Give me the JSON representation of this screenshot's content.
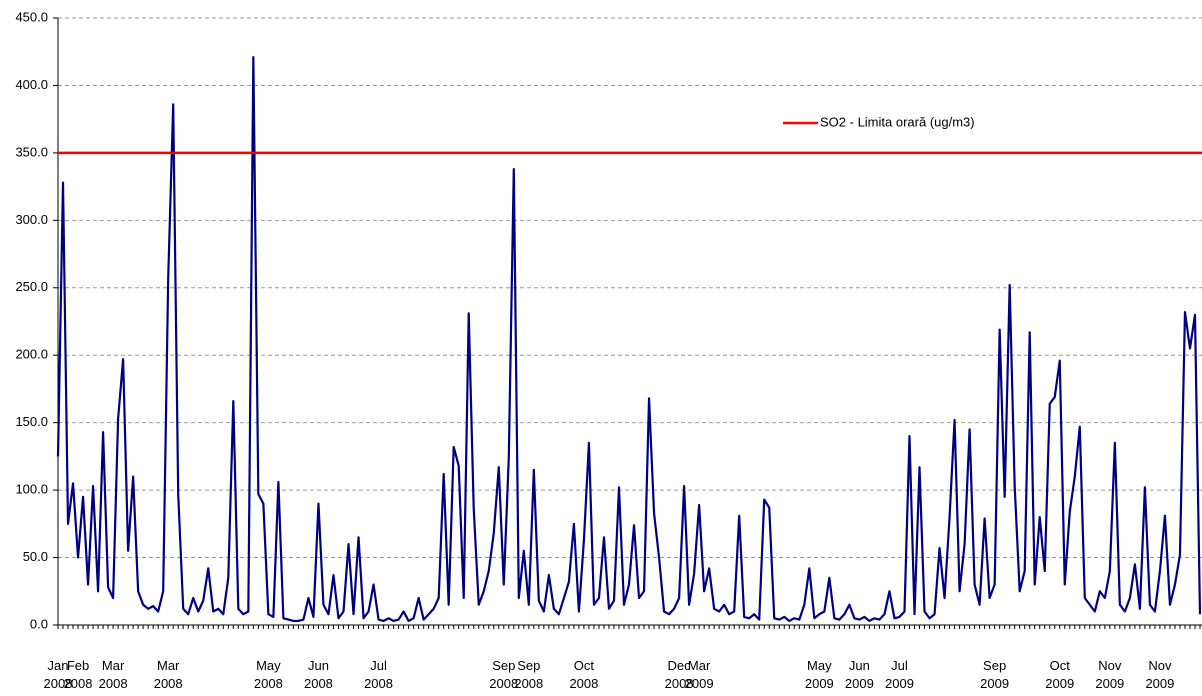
{
  "chart_data": {
    "type": "line",
    "categories": [
      "Jan 2008",
      null,
      null,
      null,
      "Feb 2008",
      null,
      null,
      null,
      null,
      null,
      null,
      "Mar 2008",
      null,
      null,
      null,
      null,
      null,
      null,
      null,
      null,
      null,
      null,
      "Mar 2008",
      null,
      null,
      null,
      null,
      null,
      null,
      null,
      null,
      null,
      null,
      null,
      null,
      null,
      null,
      null,
      null,
      null,
      null,
      null,
      "May 2008",
      null,
      null,
      null,
      null,
      null,
      null,
      null,
      null,
      null,
      "Jun 2008",
      null,
      null,
      null,
      null,
      null,
      null,
      null,
      null,
      null,
      null,
      null,
      "Jul 2008",
      null,
      null,
      null,
      null,
      null,
      null,
      null,
      null,
      null,
      null,
      null,
      null,
      null,
      null,
      null,
      null,
      null,
      null,
      null,
      null,
      null,
      null,
      null,
      null,
      "Sep 2008",
      null,
      null,
      null,
      null,
      "Sep 2008",
      null,
      null,
      null,
      null,
      null,
      null,
      null,
      null,
      null,
      null,
      "Oct 2008",
      null,
      null,
      null,
      null,
      null,
      null,
      null,
      null,
      null,
      null,
      null,
      null,
      null,
      null,
      null,
      null,
      null,
      null,
      "Dec 2008",
      null,
      null,
      null,
      "Mar 2009",
      null,
      null,
      null,
      null,
      null,
      null,
      null,
      null,
      null,
      null,
      null,
      null,
      null,
      null,
      null,
      null,
      null,
      null,
      null,
      null,
      null,
      null,
      null,
      "May 2009",
      null,
      null,
      null,
      null,
      null,
      null,
      null,
      "Jun 2009",
      null,
      null,
      null,
      null,
      null,
      null,
      null,
      "Jul 2009",
      null,
      null,
      null,
      null,
      null,
      null,
      null,
      null,
      null,
      null,
      null,
      null,
      null,
      null,
      null,
      null,
      null,
      null,
      "Sep 2009",
      null,
      null,
      null,
      null,
      null,
      null,
      null,
      null,
      null,
      null,
      null,
      null,
      "Oct 2009",
      null,
      null,
      null,
      null,
      null,
      null,
      null,
      null,
      null,
      "Nov 2009",
      null,
      null,
      null,
      null,
      null,
      null,
      null,
      null,
      null,
      "Nov 2009",
      null,
      null,
      null,
      null,
      null,
      null,
      null,
      null
    ],
    "series": [
      {
        "color": "#000080",
        "values": [
          125,
          328,
          75,
          105,
          50,
          95,
          30,
          103,
          25,
          143,
          28,
          20,
          153,
          197,
          55,
          110,
          25,
          15,
          12,
          14,
          10,
          25,
          257,
          386,
          97,
          12,
          8,
          20,
          10,
          18,
          42,
          10,
          12,
          8,
          35,
          166,
          12,
          8,
          10,
          421,
          97,
          90,
          8,
          6,
          106,
          5,
          4,
          3,
          3,
          4,
          20,
          6,
          90,
          15,
          8,
          37,
          5,
          10,
          60,
          8,
          65,
          5,
          10,
          30,
          4,
          3,
          5,
          3,
          4,
          10,
          3,
          5,
          20,
          4,
          8,
          12,
          20,
          112,
          15,
          132,
          118,
          20,
          231,
          86,
          15,
          25,
          40,
          68,
          117,
          30,
          124,
          338,
          20,
          55,
          15,
          115,
          18,
          10,
          37,
          12,
          8,
          20,
          32,
          75,
          10,
          63,
          135,
          15,
          20,
          65,
          12,
          18,
          102,
          15,
          30,
          74,
          20,
          25,
          168,
          83,
          50,
          10,
          8,
          12,
          20,
          103,
          15,
          38,
          89,
          25,
          42,
          12,
          10,
          15,
          8,
          10,
          81,
          6,
          5,
          8,
          4,
          93,
          87,
          5,
          4,
          6,
          3,
          5,
          4,
          15,
          42,
          5,
          8,
          10,
          35,
          5,
          4,
          8,
          15,
          5,
          4,
          6,
          3,
          5,
          4,
          8,
          25,
          5,
          6,
          10,
          140,
          8,
          117,
          10,
          5,
          8,
          57,
          20,
          80,
          152,
          25,
          60,
          145,
          30,
          15,
          79,
          20,
          30,
          219,
          95,
          252,
          103,
          25,
          40,
          217,
          30,
          80,
          40,
          164,
          169,
          196,
          30,
          84,
          110,
          147,
          20,
          15,
          10,
          25,
          20,
          40,
          135,
          15,
          10,
          20,
          45,
          12,
          102,
          15,
          10,
          40,
          81,
          15,
          30,
          52,
          232,
          205,
          230,
          8
        ]
      }
    ],
    "threshold": {
      "name": "SO2 - Limita orară (ug/m3)",
      "value": 350,
      "color": "#ff0000"
    },
    "ylim": [
      0,
      450
    ],
    "yticks": [
      {
        "value": 0,
        "label": "0.0"
      },
      {
        "value": 50,
        "label": "50.0"
      },
      {
        "value": 100,
        "label": "100.0"
      },
      {
        "value": 150,
        "label": "150.0"
      },
      {
        "value": 200,
        "label": "200.0"
      },
      {
        "value": 250,
        "label": "250.0"
      },
      {
        "value": 300,
        "label": "300.0"
      },
      {
        "value": 350,
        "label": "350.0"
      },
      {
        "value": 400,
        "label": "400.0"
      },
      {
        "value": 450,
        "label": "450.0"
      }
    ],
    "grid": true
  }
}
